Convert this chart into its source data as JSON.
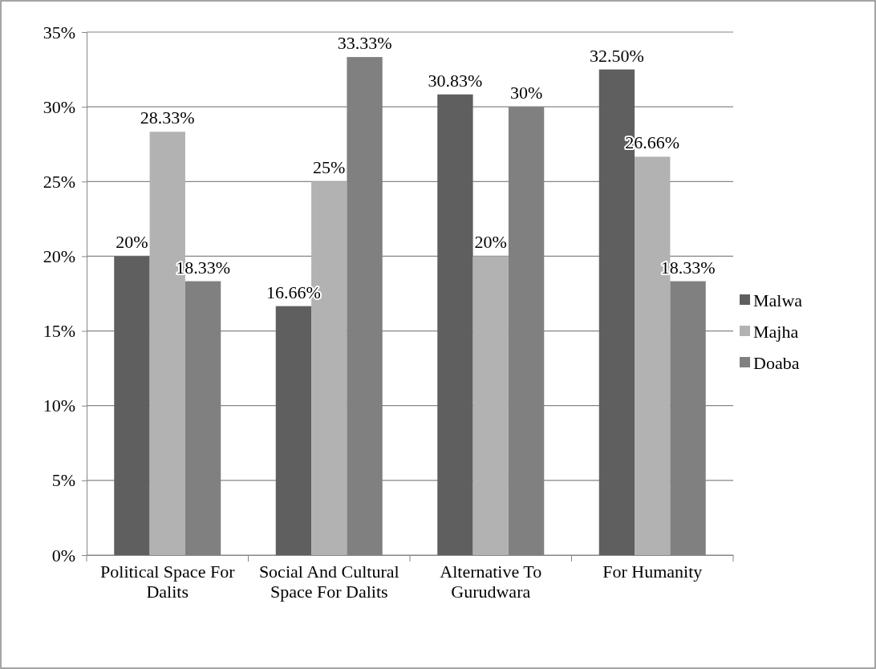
{
  "chart_data": {
    "type": "bar",
    "categories": [
      "Political Space For Dalits",
      "Social And Cultural Space For Dalits",
      "Alternative To Gurudwara",
      "For Humanity"
    ],
    "series": [
      {
        "name": "Malwa",
        "color": "#5f5f5f",
        "values": [
          20,
          16.66,
          30.83,
          32.5
        ],
        "value_labels": [
          "20%",
          "16.66%",
          "30.83%",
          "32.50%"
        ]
      },
      {
        "name": "Majha",
        "color": "#b2b2b2",
        "values": [
          28.33,
          25,
          20,
          26.66
        ],
        "value_labels": [
          "28.33%",
          "25%",
          "20%",
          "26.66%"
        ]
      },
      {
        "name": "Doaba",
        "color": "#808080",
        "values": [
          18.33,
          33.33,
          30,
          18.33
        ],
        "value_labels": [
          "18.33%",
          "33.33%",
          "30%",
          "18.33%"
        ]
      }
    ],
    "ylim": [
      0,
      35
    ],
    "yticks": [
      {
        "value": 0,
        "label": "0%"
      },
      {
        "value": 5,
        "label": "5%"
      },
      {
        "value": 10,
        "label": "10%"
      },
      {
        "value": 15,
        "label": "15%"
      },
      {
        "value": 20,
        "label": "20%"
      },
      {
        "value": 25,
        "label": "25%"
      },
      {
        "value": 30,
        "label": "30%"
      },
      {
        "value": 35,
        "label": "35%"
      }
    ],
    "grid": "y",
    "legend": "right"
  }
}
